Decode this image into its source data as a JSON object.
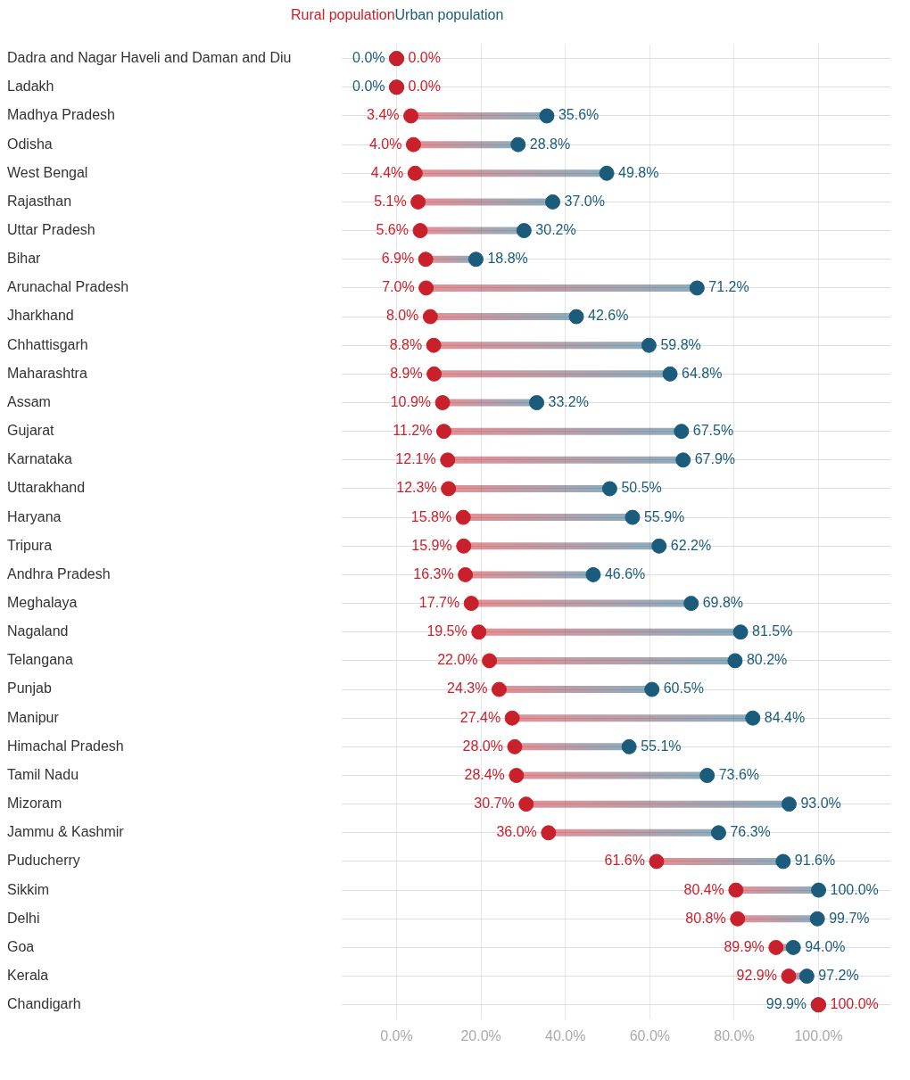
{
  "chart_data": {
    "type": "scatter",
    "orientation": "horizontal",
    "legend": "top",
    "grid": true,
    "data_labels": true,
    "categories": [
      "Dadra and Nagar Haveli and Daman and Diu",
      "Ladakh",
      "Madhya Pradesh",
      "Odisha",
      "West Bengal",
      "Rajasthan",
      "Uttar Pradesh",
      "Bihar",
      "Arunachal Pradesh",
      "Jharkhand",
      "Chhattisgarh",
      "Maharashtra",
      "Assam",
      "Gujarat",
      "Karnataka",
      "Uttarakhand",
      "Haryana",
      "Tripura",
      "Andhra Pradesh",
      "Meghalaya",
      "Nagaland",
      "Telangana",
      "Punjab",
      "Manipur",
      "Himachal Pradesh",
      "Tamil Nadu",
      "Mizoram",
      "Jammu & Kashmir",
      "Puducherry",
      "Sikkim",
      "Delhi",
      "Goa",
      "Kerala",
      "Chandigarh"
    ],
    "xlim": [
      -13,
      117
    ],
    "xticks": [
      {
        "value": 0,
        "label": "0.0%"
      },
      {
        "value": 20,
        "label": "20.0%"
      },
      {
        "value": 40,
        "label": "40.0%"
      },
      {
        "value": 60,
        "label": "60.0%"
      },
      {
        "value": 80,
        "label": "80.0%"
      },
      {
        "value": 100,
        "label": "100.0%"
      }
    ],
    "series": [
      {
        "name": "Rural population",
        "color": "#c9212b",
        "values": [
          0,
          0,
          3.4,
          4.0,
          4.4,
          5.1,
          5.6,
          6.9,
          7.0,
          8.0,
          8.8,
          8.9,
          10.9,
          11.2,
          12.1,
          12.3,
          15.8,
          15.9,
          16.3,
          17.7,
          19.5,
          22.0,
          24.3,
          27.4,
          28.0,
          28.4,
          30.7,
          36.0,
          61.6,
          80.4,
          80.8,
          89.9,
          92.9,
          100.0
        ],
        "value_labels": [
          "0.0%",
          "0.0%",
          "3.4%",
          "4.0%",
          "4.4%",
          "5.1%",
          "5.6%",
          "6.9%",
          "7.0%",
          "8.0%",
          "8.8%",
          "8.9%",
          "10.9%",
          "11.2%",
          "12.1%",
          "12.3%",
          "15.8%",
          "15.9%",
          "16.3%",
          "17.7%",
          "19.5%",
          "22.0%",
          "24.3%",
          "27.4%",
          "28.0%",
          "28.4%",
          "30.7%",
          "36.0%",
          "61.6%",
          "80.4%",
          "80.8%",
          "89.9%",
          "92.9%",
          "100.0%"
        ]
      },
      {
        "name": "Urban population",
        "color": "#1b5b7b",
        "values": [
          0,
          0,
          35.6,
          28.8,
          49.8,
          37.0,
          30.2,
          18.8,
          71.2,
          42.6,
          59.8,
          64.8,
          33.2,
          67.5,
          67.9,
          50.5,
          55.9,
          62.2,
          46.6,
          69.8,
          81.5,
          80.2,
          60.5,
          84.4,
          55.1,
          73.6,
          93.0,
          76.3,
          91.6,
          100.0,
          99.7,
          94.0,
          97.2,
          99.9
        ],
        "value_labels": [
          "0.0%",
          "0.0%",
          "35.6%",
          "28.8%",
          "49.8%",
          "37.0%",
          "30.2%",
          "18.8%",
          "71.2%",
          "42.6%",
          "59.8%",
          "64.8%",
          "33.2%",
          "67.5%",
          "67.9%",
          "50.5%",
          "55.9%",
          "62.2%",
          "46.6%",
          "69.8%",
          "81.5%",
          "80.2%",
          "60.5%",
          "84.4%",
          "55.1%",
          "73.6%",
          "93.0%",
          "76.3%",
          "91.6%",
          "100.0%",
          "99.7%",
          "94.0%",
          "97.2%",
          "99.9%"
        ]
      }
    ]
  }
}
